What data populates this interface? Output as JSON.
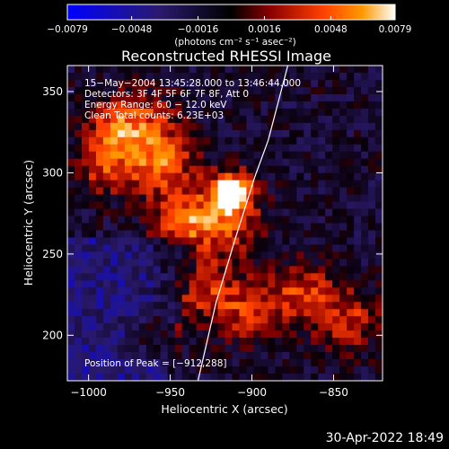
{
  "chart_data": {
    "type": "heatmap",
    "title": "Reconstructed RHESSI Image",
    "xlabel": "Heliocentric X (arcsec)",
    "ylabel": "Heliocentric Y (arcsec)",
    "xlim": [
      -1013,
      -820
    ],
    "ylim": [
      172,
      366
    ],
    "x_ticks": [
      -1000,
      -950,
      -900,
      -850
    ],
    "x_tick_labels": [
      "−1000",
      "−950",
      "−900",
      "−850"
    ],
    "y_ticks": [
      200,
      250,
      300,
      350
    ],
    "y_tick_labels": [
      "200",
      "250",
      "300",
      "350"
    ],
    "colorbar": {
      "range": [
        -0.0079,
        0.0079
      ],
      "ticks": [
        -0.0079,
        -0.0048,
        -0.0016,
        0.0016,
        0.0048,
        0.0079
      ],
      "tick_labels": [
        "−0.0079",
        "−0.0048",
        "−0.0016",
        "0.0016",
        "0.0048",
        "0.0079"
      ],
      "unit_label": "(photons cm⁻² s⁻¹ asec⁻²)",
      "colors": [
        "#0000ff",
        "#2a1a6e",
        "#000000",
        "#8b0000",
        "#ff4000",
        "#ff9900",
        "#ffffff"
      ]
    },
    "annotations": [
      "15−May−2004 13:45:28.000 to 13:46:44.000",
      "Detectors: 3F 4F 5F 6F 7F 8F, Att 0",
      "Energy Range: 6.0 − 12.0 keV",
      "Clean    Total counts: 6.23E+03"
    ],
    "peak_label": "Position of Peak = [−912,288]",
    "peak": {
      "x": -912,
      "y": 288
    },
    "limb_curve": [
      [
        -933,
        172
      ],
      [
        -922,
        220
      ],
      [
        -910,
        260
      ],
      [
        -898,
        298
      ],
      [
        -890,
        320
      ],
      [
        -878,
        366
      ]
    ],
    "sources": [
      {
        "x": -912,
        "y": 288,
        "amp": 1.0,
        "sigma": 8
      },
      {
        "x": -918,
        "y": 272,
        "amp": 0.55,
        "sigma": 16
      },
      {
        "x": -955,
        "y": 305,
        "amp": 0.55,
        "sigma": 14
      },
      {
        "x": -945,
        "y": 270,
        "amp": 0.5,
        "sigma": 12
      },
      {
        "x": -990,
        "y": 305,
        "amp": 0.5,
        "sigma": 13
      },
      {
        "x": -965,
        "y": 330,
        "amp": 0.4,
        "sigma": 14
      },
      {
        "x": -935,
        "y": 230,
        "amp": 0.45,
        "sigma": 14
      },
      {
        "x": -905,
        "y": 215,
        "amp": 0.45,
        "sigma": 14
      },
      {
        "x": -870,
        "y": 225,
        "amp": 0.45,
        "sigma": 14
      },
      {
        "x": -840,
        "y": 210,
        "amp": 0.4,
        "sigma": 14
      },
      {
        "x": -985,
        "y": 330,
        "amp": 0.4,
        "sigma": 12
      },
      {
        "x": -960,
        "y": 200,
        "amp": 0.35,
        "sigma": 10
      }
    ]
  },
  "footer": {
    "timestamp": "30-Apr-2022 18:49"
  }
}
